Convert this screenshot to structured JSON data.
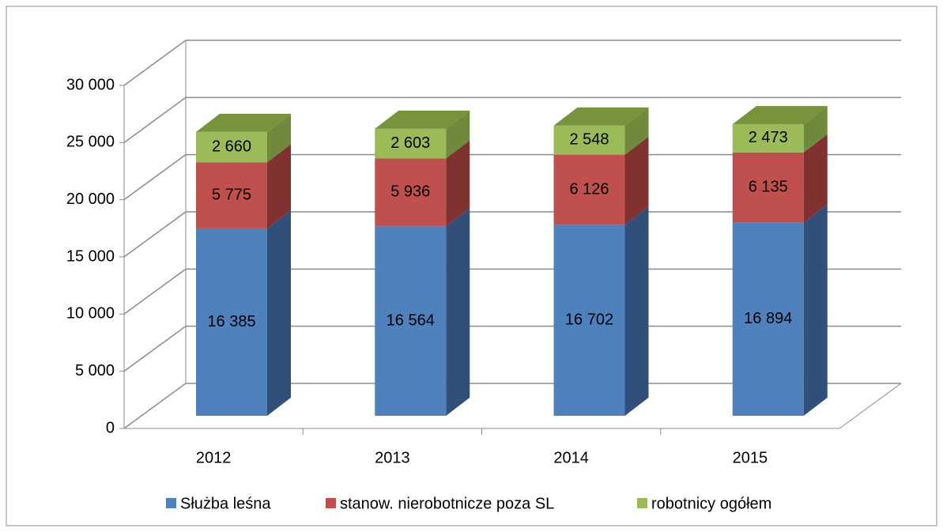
{
  "chart_data": {
    "type": "bar3d_stacked",
    "categories": [
      "2012",
      "2013",
      "2014",
      "2015"
    ],
    "series": [
      {
        "name": "Służba leśna",
        "color": "#4f81bd",
        "side": "#30507a",
        "values": [
          16385,
          16564,
          16702,
          16894
        ],
        "value_labels": [
          "16 385",
          "16 564",
          "16 702",
          "16 894"
        ]
      },
      {
        "name": "stanow. nierobotnicze poza SL",
        "color": "#c0504d",
        "side": "#7f3230",
        "values": [
          5775,
          5936,
          6126,
          6135
        ],
        "value_labels": [
          "5 775",
          "5 936",
          "6 126",
          "6 135"
        ]
      },
      {
        "name": "robotnicy ogółem",
        "color": "#9bbb59",
        "side": "#6f8a3b",
        "top": "#77933c",
        "values": [
          2660,
          2603,
          2548,
          2473
        ],
        "value_labels": [
          "2 660",
          "2 603",
          "2 548",
          "2 473"
        ]
      }
    ],
    "ylim": [
      0,
      30000
    ],
    "yticks": [
      0,
      {
        "value": 5000,
        "label": "5 000"
      },
      {
        "value": 10000,
        "label": "10 000"
      },
      {
        "value": 15000,
        "label": "15 000"
      },
      {
        "value": 20000,
        "label": "20 000"
      },
      {
        "value": 25000,
        "label": "25 000"
      },
      {
        "value": 30000,
        "label": "30 000"
      }
    ],
    "grid": true,
    "legend": "bottom"
  }
}
